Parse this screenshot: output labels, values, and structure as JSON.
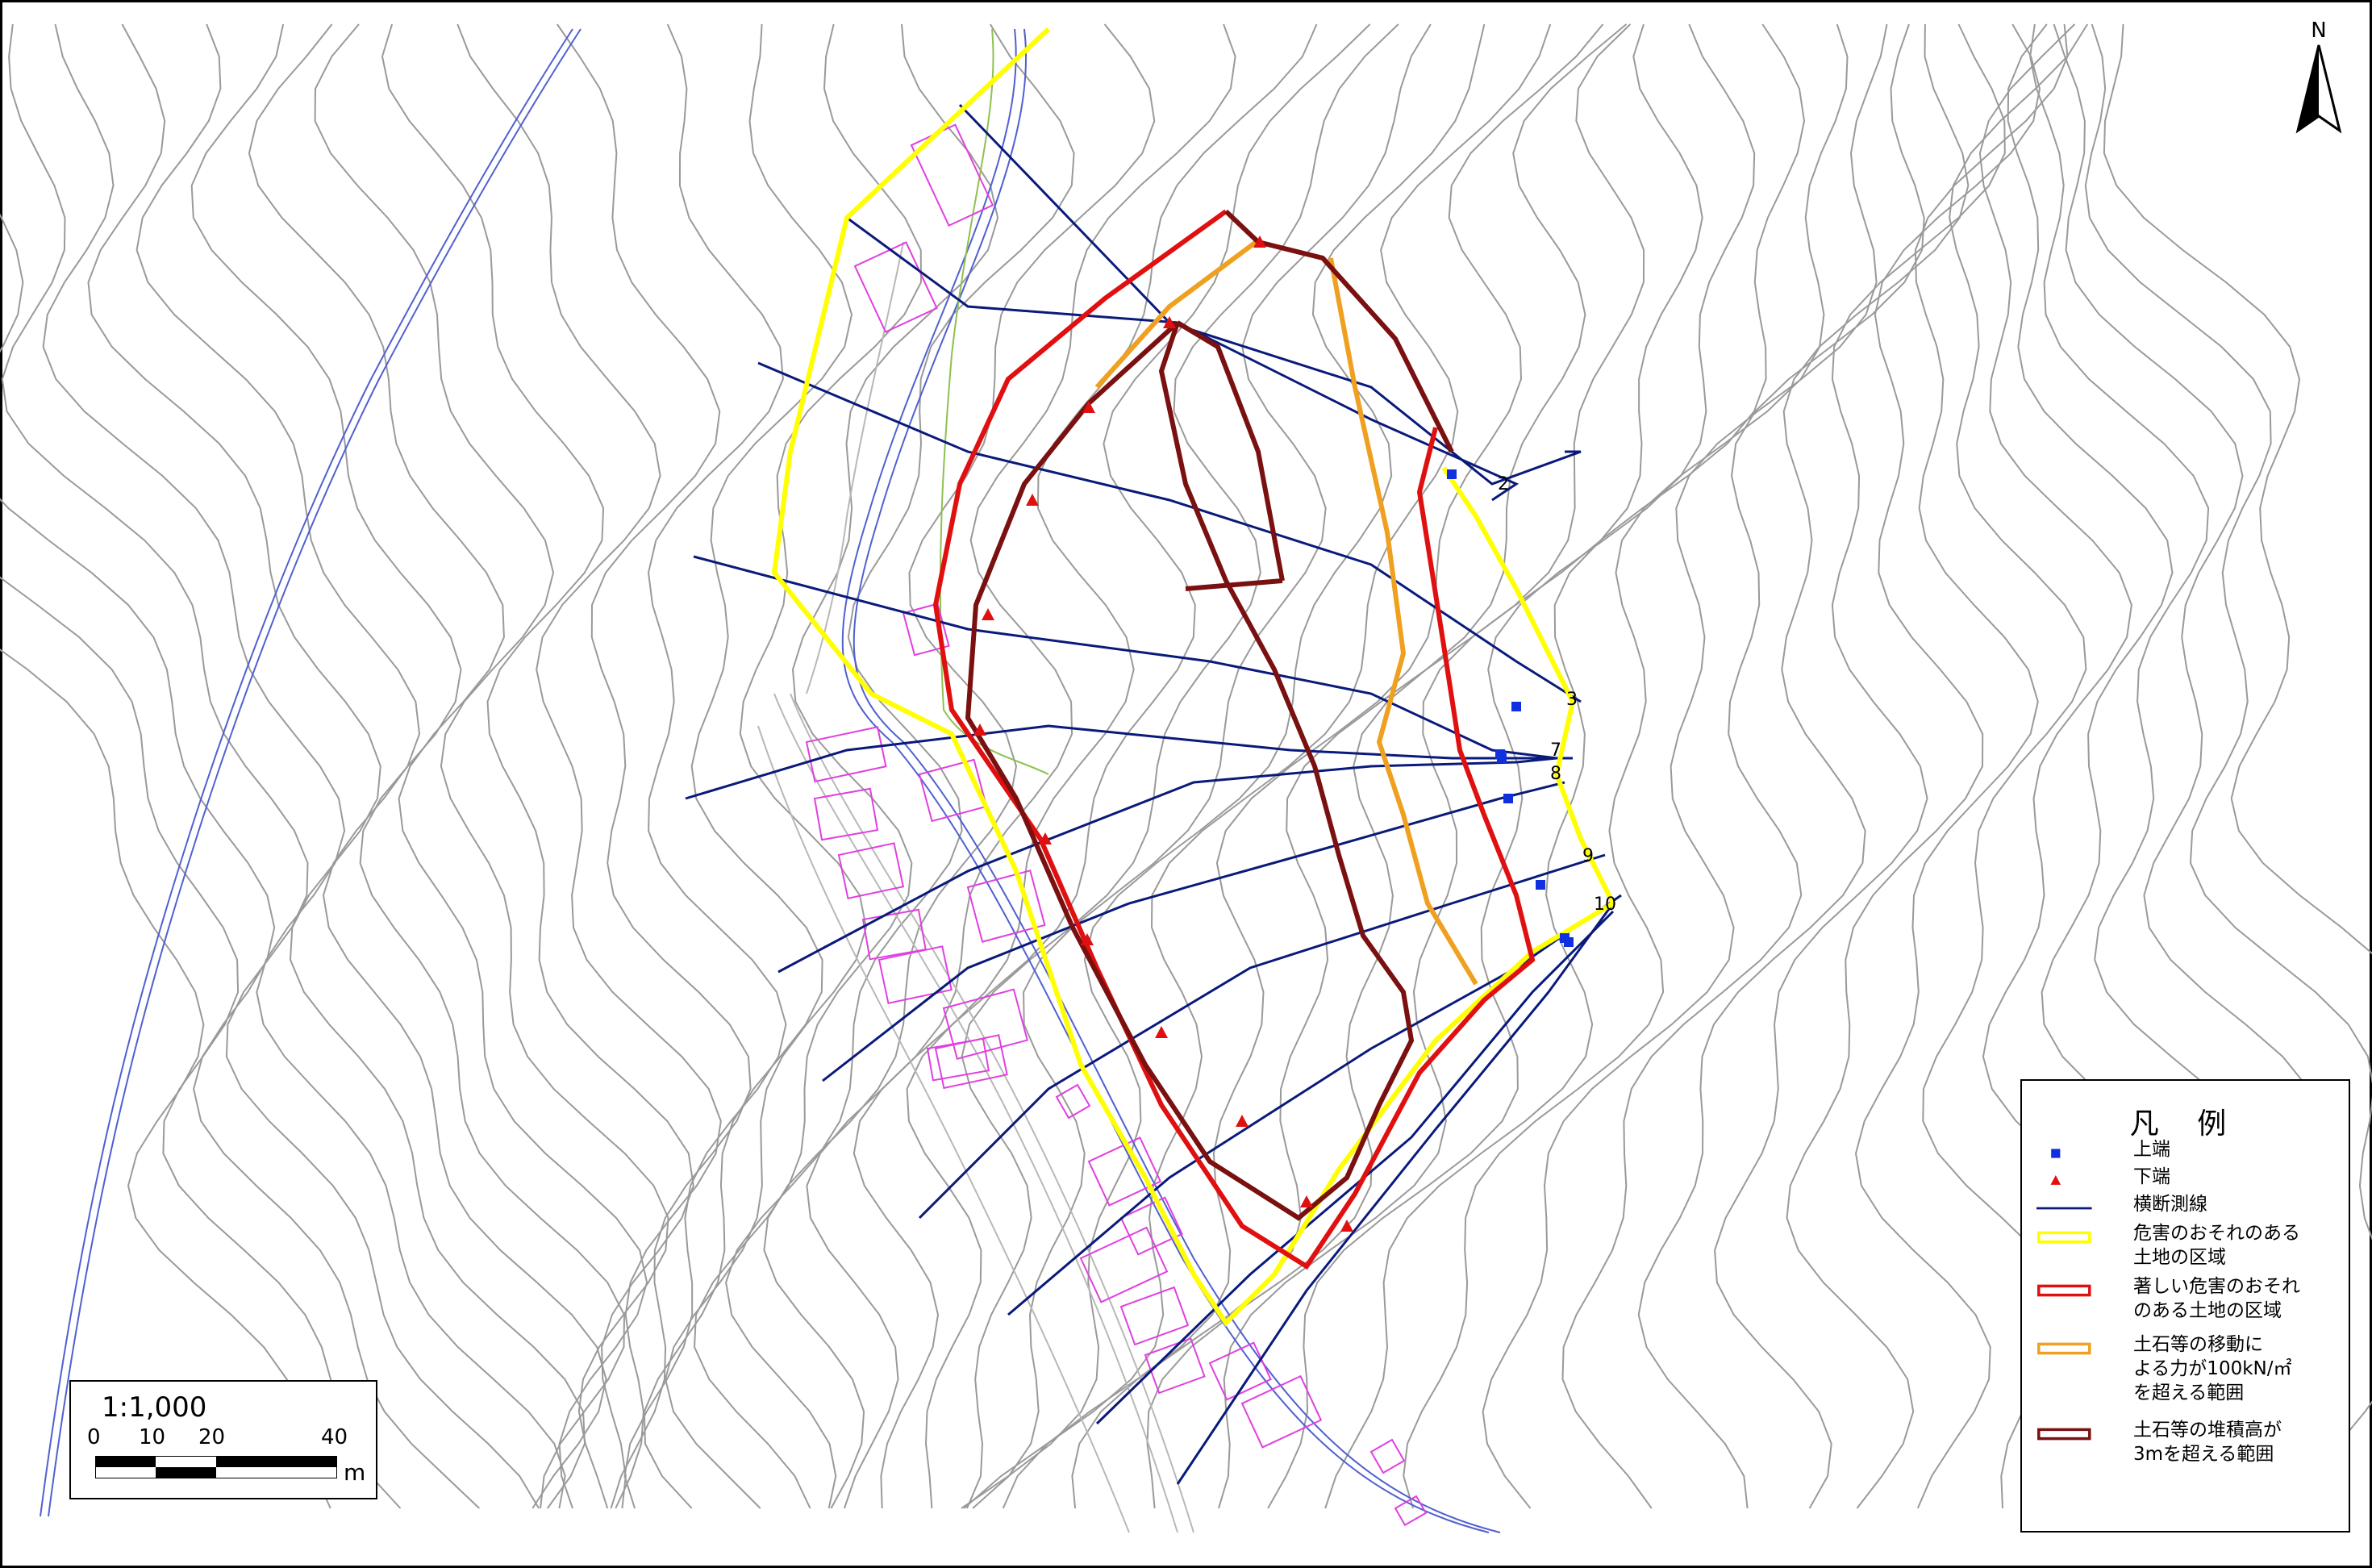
{
  "map": {
    "sections": [
      {
        "n": "2"
      },
      {
        "n": "3"
      },
      {
        "n": "7"
      },
      {
        "n": "8"
      },
      {
        "n": "9"
      },
      {
        "n": "10"
      }
    ]
  },
  "legend": {
    "title": "凡 例",
    "items": [
      {
        "symbol": "blue-square",
        "label": "上端"
      },
      {
        "symbol": "red-triangle",
        "label": "下端"
      },
      {
        "symbol": "navy-line",
        "label": "横断測線"
      },
      {
        "symbol": "yellow-box",
        "label": "危害のおそれのある\n土地の区域"
      },
      {
        "symbol": "red-box",
        "label": "著しい危害のおそれ\nのある土地の区域"
      },
      {
        "symbol": "orange-box",
        "label": "土石等の移動に\nよる力が100kN/㎡\nを超える範囲"
      },
      {
        "symbol": "maroon-box",
        "label": "土石等の堆積高が\n3mを超える範囲"
      }
    ]
  },
  "scale": {
    "ratio": "1:1,000",
    "ticks": [
      "0",
      "10",
      "20",
      "40"
    ],
    "unit": "m"
  },
  "north": {
    "label": "N"
  },
  "colors": {
    "contour": "#9a9a9a",
    "section_line": "#0a1a7a",
    "yellow_zone": "#ffff00",
    "red_zone": "#e01010",
    "orange_zone": "#f0a020",
    "maroon_zone": "#7a1010",
    "upper_end": "#1030e0",
    "lower_end": "#e01010",
    "building": "#e040e0",
    "river": "#5060d0"
  }
}
